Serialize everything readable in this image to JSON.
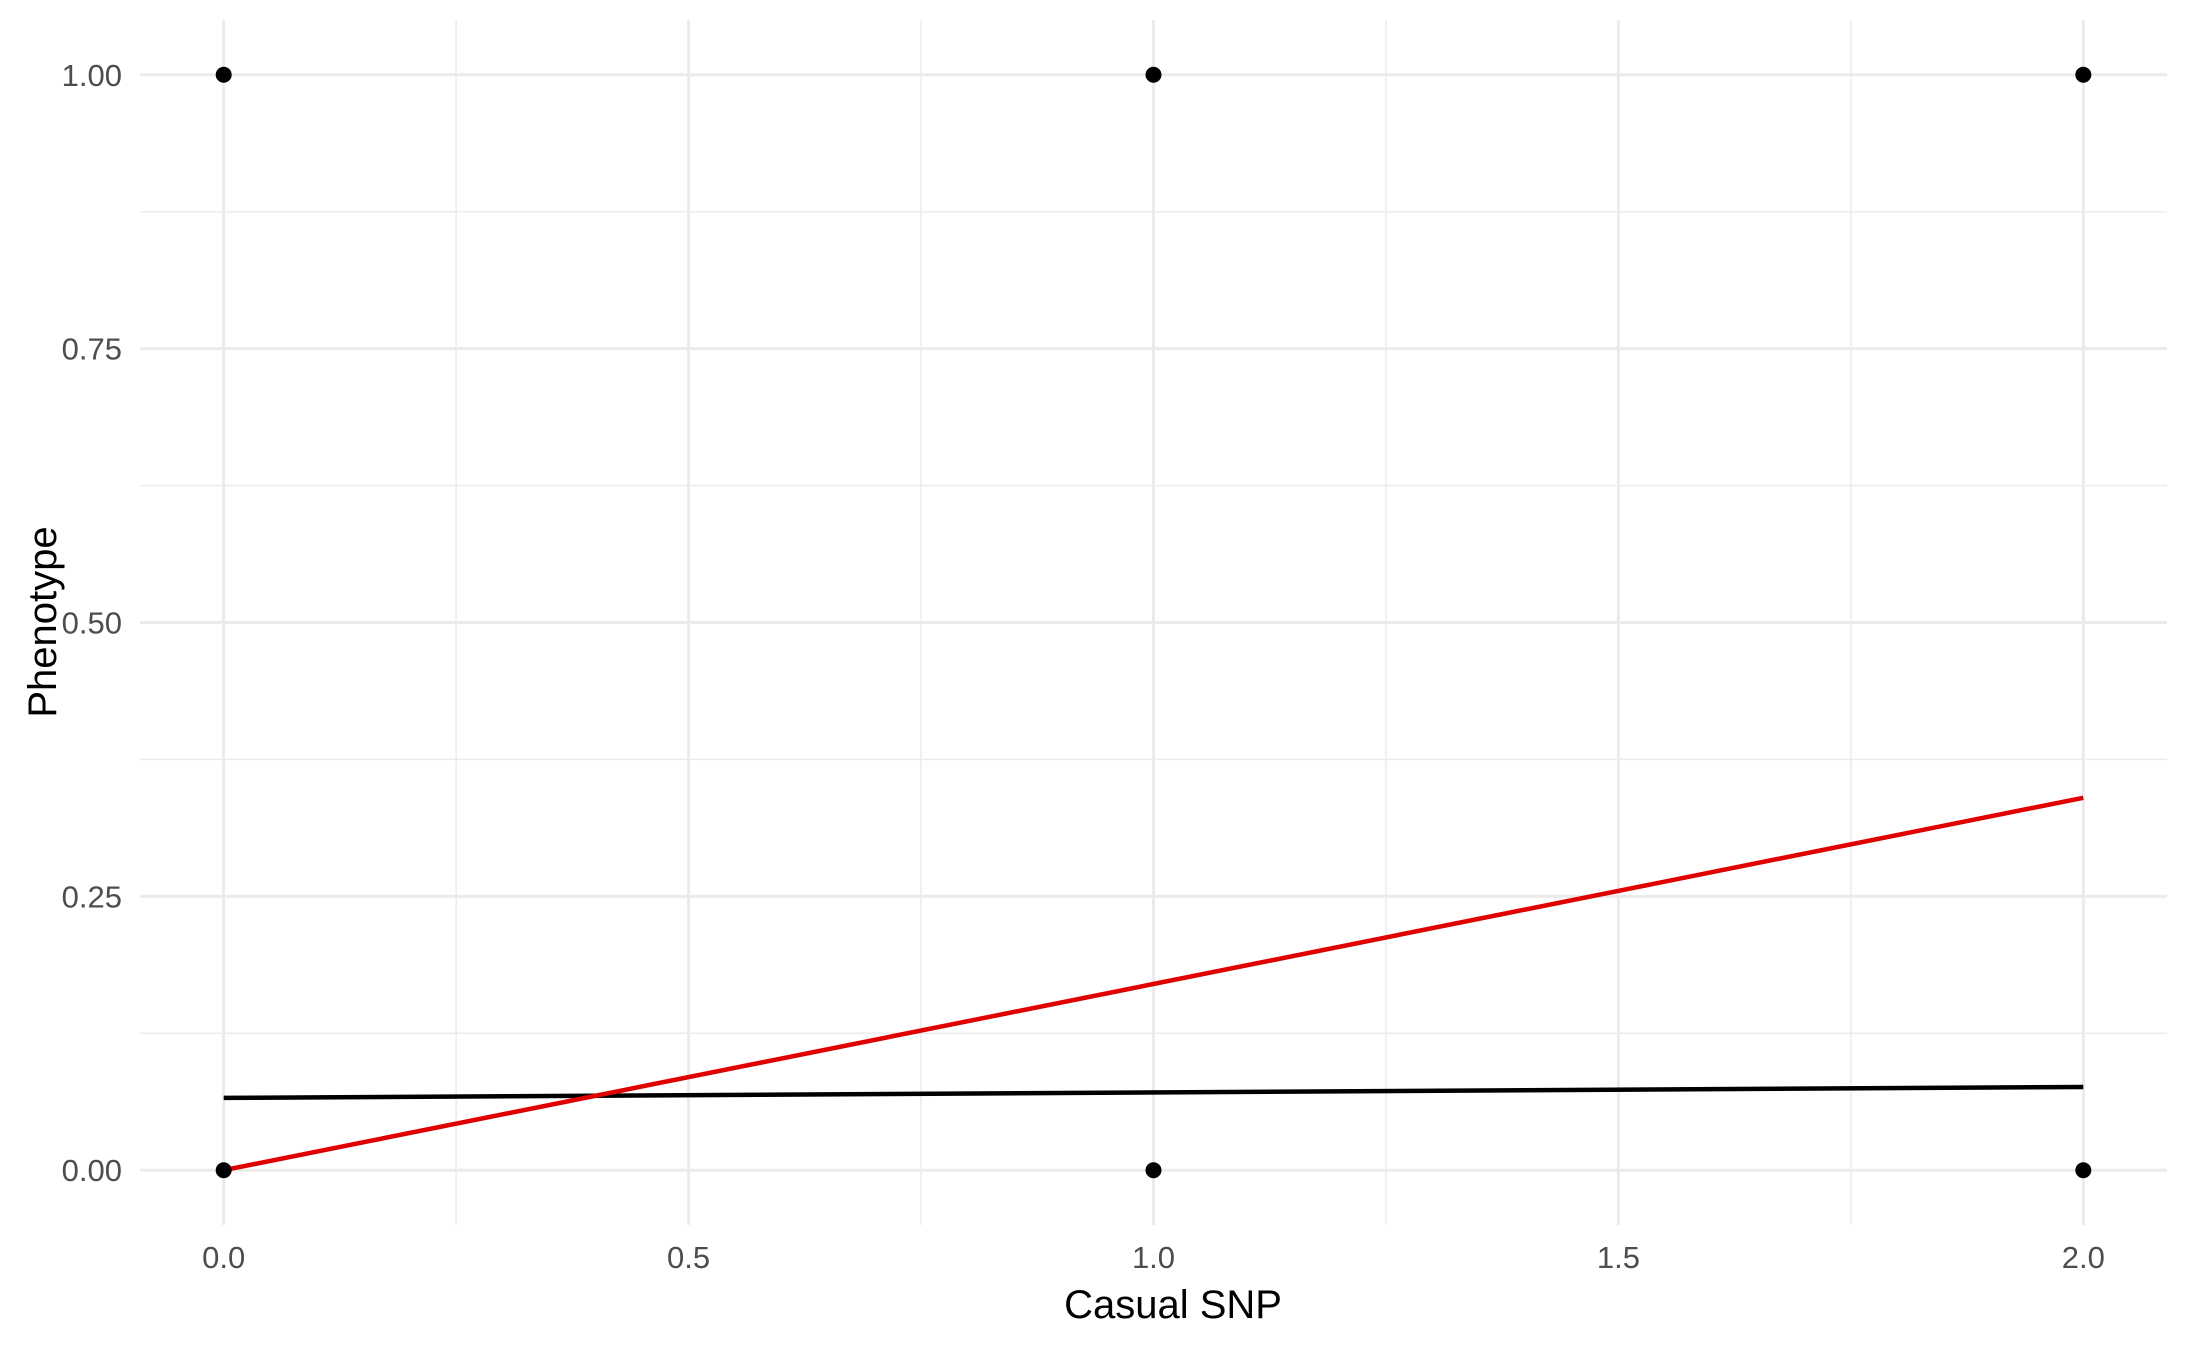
{
  "chart_data": {
    "type": "scatter",
    "title": "",
    "xlabel": "Casual SNP",
    "ylabel": "Phenotype",
    "xlim": [
      -0.09,
      2.09
    ],
    "ylim": [
      -0.05,
      1.05
    ],
    "x_ticks": [
      {
        "value": 0.0,
        "label": "0.0"
      },
      {
        "value": 0.5,
        "label": "0.5"
      },
      {
        "value": 1.0,
        "label": "1.0"
      },
      {
        "value": 1.5,
        "label": "1.5"
      },
      {
        "value": 2.0,
        "label": "2.0"
      }
    ],
    "y_ticks": [
      {
        "value": 0.0,
        "label": "0.00"
      },
      {
        "value": 0.25,
        "label": "0.25"
      },
      {
        "value": 0.5,
        "label": "0.50"
      },
      {
        "value": 0.75,
        "label": "0.75"
      },
      {
        "value": 1.0,
        "label": "1.00"
      }
    ],
    "x_minor": [
      0.25,
      0.75,
      1.25,
      1.75
    ],
    "y_minor": [
      0.125,
      0.375,
      0.625,
      0.875
    ],
    "grid": true,
    "points": [
      {
        "x": 0,
        "y": 1
      },
      {
        "x": 1,
        "y": 1
      },
      {
        "x": 2,
        "y": 1
      },
      {
        "x": 0,
        "y": 0
      },
      {
        "x": 1,
        "y": 0
      },
      {
        "x": 2,
        "y": 0
      }
    ],
    "lines": [
      {
        "color": "#000000",
        "points": [
          [
            0,
            0.066
          ],
          [
            2,
            0.076
          ]
        ]
      },
      {
        "color": "#e00000",
        "points": [
          [
            0,
            0.0
          ],
          [
            2,
            0.34
          ]
        ]
      }
    ],
    "colors": {
      "points": "#000000",
      "grid": "#ebebeb"
    }
  }
}
